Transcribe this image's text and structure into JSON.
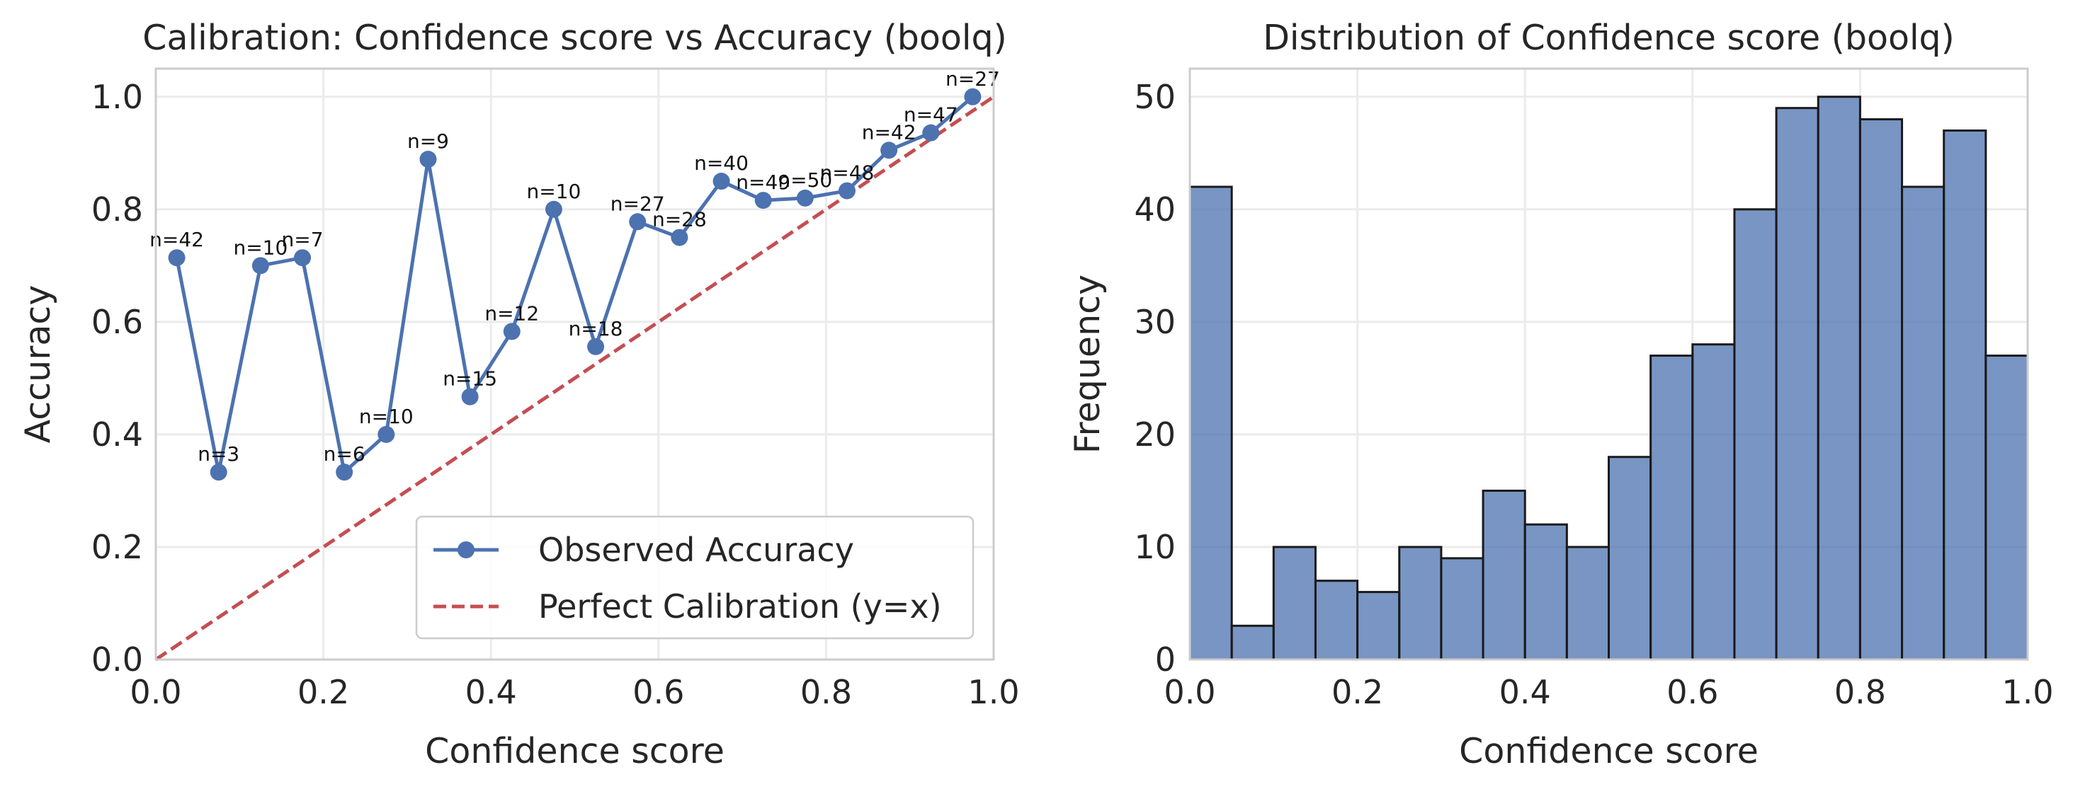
{
  "colors": {
    "observed": "#4c72b0",
    "perfect": "#c44e52",
    "hist_fill": "#4c72b0",
    "grid": "#ebebeb",
    "spine": "#cccccc",
    "text": "#262626"
  },
  "chart_data": [
    {
      "type": "line",
      "title": "Calibration: Confidence score vs Accuracy (boolq)",
      "xlabel": "Confidence score",
      "ylabel": "Accuracy",
      "xlim": [
        0,
        1
      ],
      "ylim": [
        0,
        1.05
      ],
      "xticks": [
        "0.0",
        "0.2",
        "0.4",
        "0.6",
        "0.8",
        "1.0"
      ],
      "yticks": [
        "0.0",
        "0.2",
        "0.4",
        "0.6",
        "0.8",
        "1.0"
      ],
      "grid": true,
      "legend_position": "lower-right",
      "series": [
        {
          "name": "Observed Accuracy",
          "x": [
            0.025,
            0.075,
            0.125,
            0.175,
            0.225,
            0.275,
            0.325,
            0.375,
            0.425,
            0.475,
            0.525,
            0.575,
            0.625,
            0.675,
            0.725,
            0.775,
            0.825,
            0.875,
            0.925,
            0.975
          ],
          "y": [
            0.714,
            0.333,
            0.7,
            0.714,
            0.333,
            0.4,
            0.889,
            0.467,
            0.583,
            0.8,
            0.556,
            0.778,
            0.75,
            0.85,
            0.816,
            0.82,
            0.833,
            0.905,
            0.936,
            1.0
          ],
          "annotations": [
            "n=42",
            "n=3",
            "n=10",
            "n=7",
            "n=6",
            "n=10",
            "n=9",
            "n=15",
            "n=12",
            "n=10",
            "n=18",
            "n=27",
            "n=28",
            "n=40",
            "n=49",
            "n=50",
            "n=48",
            "n=42",
            "n=47",
            "n=27"
          ]
        },
        {
          "name": "Perfect Calibration (y=x)",
          "x": [
            0,
            1
          ],
          "y": [
            0,
            1
          ]
        }
      ]
    },
    {
      "type": "bar",
      "title": "Distribution of Confidence score (boolq)",
      "xlabel": "Confidence score",
      "ylabel": "Frequency",
      "xlim": [
        0,
        1
      ],
      "ylim": [
        0,
        52.5
      ],
      "xticks": [
        "0.0",
        "0.2",
        "0.4",
        "0.6",
        "0.8",
        "1.0"
      ],
      "yticks": [
        "0",
        "10",
        "20",
        "30",
        "40",
        "50"
      ],
      "grid": true,
      "bin_edges": [
        0,
        0.05,
        0.1,
        0.15,
        0.2,
        0.25,
        0.3,
        0.35,
        0.4,
        0.45,
        0.5,
        0.55,
        0.6,
        0.65,
        0.7,
        0.75,
        0.8,
        0.85,
        0.9,
        0.95,
        1.0
      ],
      "values": [
        42,
        3,
        10,
        7,
        6,
        10,
        9,
        15,
        12,
        10,
        18,
        27,
        28,
        40,
        49,
        50,
        48,
        42,
        47,
        27
      ]
    }
  ]
}
